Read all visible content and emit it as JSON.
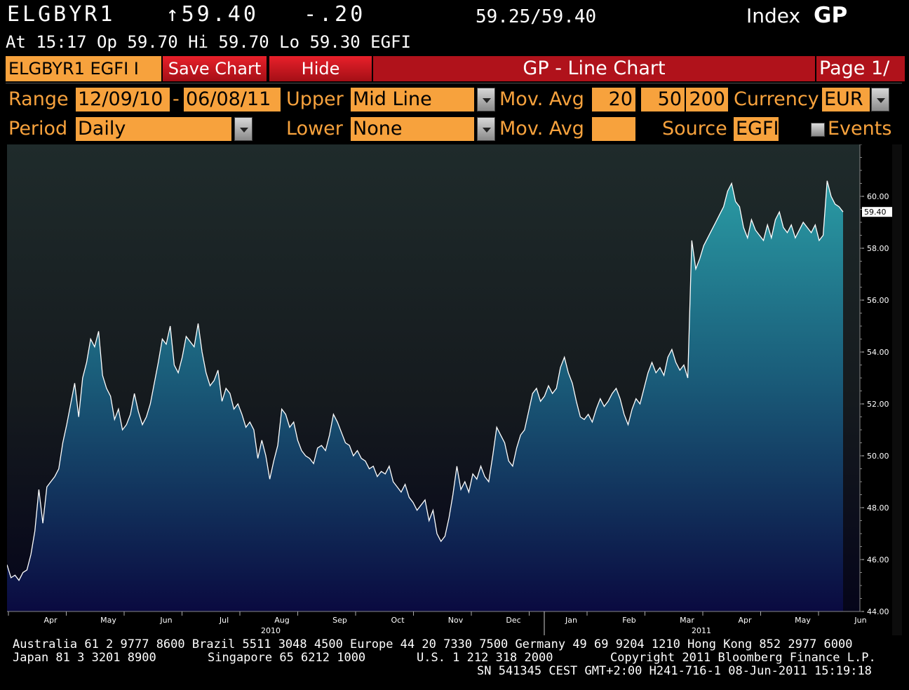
{
  "header": {
    "ticker": "ELGBYR1",
    "arrow": "↑",
    "last": "59.40",
    "change": "-.20",
    "bid_ask": "59.25/59.40",
    "index_label": "Index",
    "function": "GP",
    "time_line": "At 15:17  Op 59.70 Hi 59.70 Lo 59.30  EGFI"
  },
  "toolbar": {
    "security": "ELGBYR1 EGFI I",
    "save_chart": "Save Chart",
    "hide": "Hide",
    "title": "GP - Line Chart",
    "page": "Page 1/"
  },
  "params": {
    "range_label": "Range",
    "range_start": "12/09/10",
    "range_sep": "-",
    "range_end": "06/08/11",
    "upper_label": "Upper",
    "upper_value": "Mid Line",
    "movavg_label": "Mov. Avg",
    "movavg_1": "20",
    "movavg_2": "50",
    "movavg_3": "200",
    "currency_label": "Currency",
    "currency_value": "EUR",
    "period_label": "Period",
    "period_value": "Daily",
    "lower_label": "Lower",
    "lower_value": "None",
    "movavg2_label": "Mov. Avg",
    "source_label": "Source",
    "source_value": "EGFI",
    "events_label": "Events"
  },
  "colors": {
    "orange": "#f7a23d",
    "line": "#ffffff",
    "fill_top": "#2a8e99",
    "fill_bottom": "#0b0b45",
    "bg_top": "#1e2a2a",
    "bg_bottom": "#06061a"
  },
  "chart_data": {
    "type": "area",
    "ylim": [
      44,
      62
    ],
    "yticks": [
      "44.00",
      "46.00",
      "48.00",
      "50.00",
      "52.00",
      "54.00",
      "56.00",
      "58.00",
      "60.00"
    ],
    "last_label": "59.40",
    "months": [
      "Apr",
      "May",
      "Jun",
      "Jul",
      "Aug",
      "Sep",
      "Oct",
      "Nov",
      "Dec",
      "Jan",
      "Feb",
      "Mar",
      "Apr",
      "May",
      "Jun"
    ],
    "years": [
      "2010",
      "2011"
    ],
    "values": [
      45.8,
      45.3,
      45.4,
      45.2,
      45.5,
      45.6,
      46.2,
      47.1,
      48.7,
      47.4,
      48.8,
      49.0,
      49.2,
      49.5,
      50.5,
      51.2,
      52.0,
      52.8,
      51.5,
      53.0,
      53.6,
      54.5,
      54.2,
      54.8,
      53.1,
      52.6,
      52.3,
      51.4,
      51.8,
      51.0,
      51.2,
      51.6,
      52.4,
      51.7,
      51.2,
      51.5,
      52.0,
      52.8,
      53.6,
      54.5,
      54.3,
      55.0,
      53.5,
      53.2,
      53.8,
      54.6,
      54.4,
      54.2,
      55.1,
      54.0,
      53.2,
      52.7,
      52.9,
      53.3,
      52.1,
      52.6,
      52.4,
      51.8,
      52.0,
      51.6,
      51.1,
      51.3,
      51.0,
      49.9,
      50.6,
      50.0,
      49.1,
      49.8,
      50.4,
      51.8,
      51.6,
      51.1,
      51.3,
      50.6,
      50.2,
      50.0,
      49.9,
      49.7,
      50.3,
      50.4,
      50.2,
      50.8,
      51.6,
      51.3,
      50.9,
      50.5,
      50.4,
      50.0,
      50.2,
      49.9,
      49.8,
      49.5,
      49.6,
      49.2,
      49.4,
      49.3,
      49.6,
      49.0,
      48.8,
      48.6,
      48.9,
      48.4,
      48.2,
      47.9,
      48.1,
      48.3,
      47.5,
      47.9,
      47.0,
      46.7,
      46.9,
      47.6,
      48.5,
      49.6,
      48.7,
      49.0,
      48.6,
      49.3,
      49.1,
      49.6,
      49.2,
      49.0,
      50.0,
      51.1,
      50.8,
      50.5,
      49.8,
      49.6,
      50.3,
      50.8,
      51.0,
      51.7,
      52.4,
      52.6,
      52.1,
      52.3,
      52.7,
      52.4,
      52.6,
      53.4,
      53.8,
      53.2,
      52.8,
      52.1,
      51.5,
      51.4,
      51.6,
      51.3,
      51.8,
      52.2,
      51.9,
      52.1,
      52.4,
      52.6,
      52.2,
      51.6,
      51.2,
      51.8,
      52.2,
      52.0,
      52.6,
      53.2,
      53.6,
      53.2,
      53.4,
      53.1,
      53.8,
      54.1,
      53.6,
      53.3,
      53.5,
      53.0,
      58.3,
      57.2,
      57.6,
      58.1,
      58.4,
      58.7,
      59.0,
      59.3,
      59.6,
      60.2,
      60.5,
      59.8,
      59.6,
      58.8,
      58.4,
      59.1,
      58.7,
      58.5,
      58.3,
      58.9,
      58.4,
      59.1,
      59.4,
      58.8,
      58.6,
      58.9,
      58.4,
      58.7,
      59.0,
      58.8,
      58.6,
      58.9,
      58.3,
      58.5,
      60.6,
      60.0,
      59.7,
      59.6,
      59.4
    ]
  },
  "footer": {
    "line1": "Australia 61 2 9777 8600 Brazil 5511 3048 4500 Europe 44 20 7330 7500 Germany 49 69 9204 1210 Hong Kong 852 2977 6000",
    "line2a": "Japan 81 3 3201 8900",
    "line2b": "Singapore 65 6212 1000",
    "line2c": "U.S. 1 212 318 2000",
    "line2d": "Copyright 2011 Bloomberg Finance L.P.",
    "line3": "SN 541345 CEST GMT+2:00 H241-716-1 08-Jun-2011 15:19:18"
  }
}
